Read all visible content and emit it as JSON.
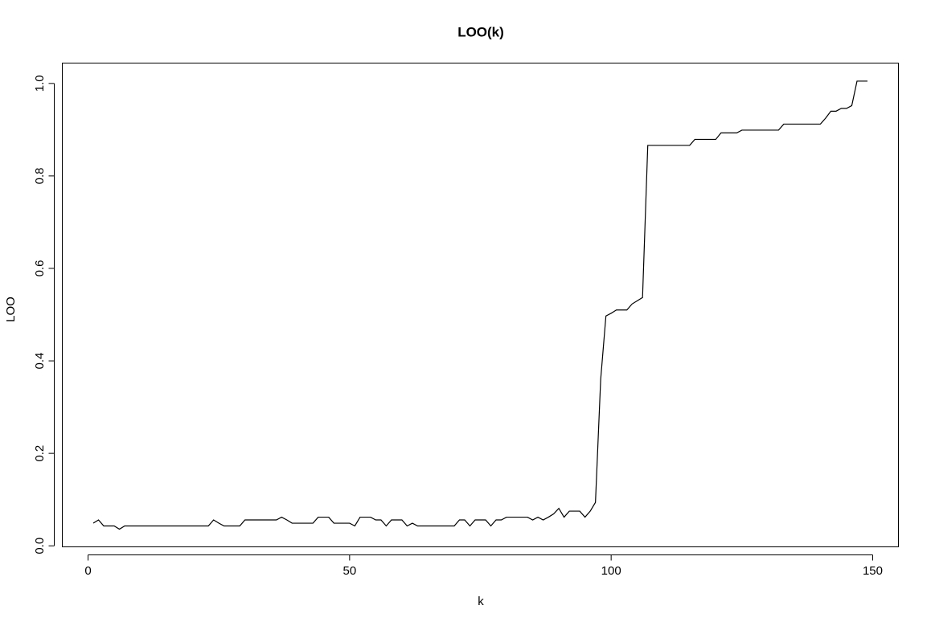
{
  "chart_data": {
    "type": "line",
    "title": "LOO(k)",
    "xlabel": "k",
    "ylabel": "LOO",
    "x": [
      1,
      2,
      3,
      4,
      5,
      6,
      7,
      8,
      9,
      10,
      11,
      12,
      13,
      14,
      15,
      16,
      17,
      18,
      19,
      20,
      21,
      22,
      23,
      24,
      25,
      26,
      27,
      28,
      29,
      30,
      31,
      32,
      33,
      34,
      35,
      36,
      37,
      38,
      39,
      40,
      41,
      42,
      43,
      44,
      45,
      46,
      47,
      48,
      49,
      50,
      51,
      52,
      53,
      54,
      55,
      56,
      57,
      58,
      59,
      60,
      61,
      62,
      63,
      64,
      65,
      66,
      67,
      68,
      69,
      70,
      71,
      72,
      73,
      74,
      75,
      76,
      77,
      78,
      79,
      80,
      81,
      82,
      83,
      84,
      85,
      86,
      87,
      88,
      89,
      90,
      91,
      92,
      93,
      94,
      95,
      96,
      97,
      98,
      99,
      100,
      101,
      102,
      103,
      104,
      105,
      106,
      107,
      108,
      109,
      110,
      111,
      112,
      113,
      114,
      115,
      116,
      117,
      118,
      119,
      120,
      121,
      122,
      123,
      124,
      125,
      126,
      127,
      128,
      129,
      130,
      131,
      132,
      133,
      134,
      135,
      136,
      137,
      138,
      139,
      140,
      141,
      142,
      143,
      144,
      145,
      146,
      147,
      148,
      149
    ],
    "series": [
      {
        "color": "#000000",
        "values": [
          0.049,
          0.056,
          0.043,
          0.043,
          0.043,
          0.036,
          0.043,
          0.043,
          0.043,
          0.043,
          0.043,
          0.043,
          0.043,
          0.043,
          0.043,
          0.043,
          0.043,
          0.043,
          0.043,
          0.043,
          0.043,
          0.043,
          0.043,
          0.056,
          0.049,
          0.043,
          0.043,
          0.043,
          0.043,
          0.056,
          0.056,
          0.056,
          0.056,
          0.056,
          0.056,
          0.056,
          0.062,
          0.056,
          0.049,
          0.049,
          0.049,
          0.049,
          0.049,
          0.062,
          0.062,
          0.062,
          0.049,
          0.049,
          0.049,
          0.049,
          0.043,
          0.062,
          0.062,
          0.062,
          0.056,
          0.056,
          0.043,
          0.056,
          0.056,
          0.056,
          0.043,
          0.049,
          0.043,
          0.043,
          0.043,
          0.043,
          0.043,
          0.043,
          0.043,
          0.043,
          0.056,
          0.056,
          0.043,
          0.056,
          0.056,
          0.056,
          0.043,
          0.056,
          0.056,
          0.062,
          0.062,
          0.062,
          0.062,
          0.062,
          0.056,
          0.062,
          0.056,
          0.062,
          0.069,
          0.081,
          0.062,
          0.075,
          0.075,
          0.075,
          0.062,
          0.075,
          0.094,
          0.36,
          0.497,
          0.503,
          0.51,
          0.51,
          0.51,
          0.523,
          0.53,
          0.537,
          0.866,
          0.866,
          0.866,
          0.866,
          0.866,
          0.866,
          0.866,
          0.866,
          0.866,
          0.879,
          0.879,
          0.879,
          0.879,
          0.879,
          0.893,
          0.893,
          0.893,
          0.893,
          0.899,
          0.899,
          0.899,
          0.899,
          0.899,
          0.899,
          0.899,
          0.899,
          0.912,
          0.912,
          0.912,
          0.912,
          0.912,
          0.912,
          0.912,
          0.912,
          0.925,
          0.94,
          0.94,
          0.946,
          0.946,
          0.952,
          1.005,
          1.005,
          1.005
        ]
      }
    ],
    "xlim": [
      -4.92,
      154.92
    ],
    "ylim": [
      -0.0022,
      1.044
    ],
    "xticks": [
      0,
      50,
      100,
      150
    ],
    "yticks": [
      {
        "value": 0,
        "label": "0.0"
      },
      0.2,
      0.4,
      0.6,
      0.8,
      {
        "value": 1,
        "label": "1.0"
      }
    ]
  }
}
